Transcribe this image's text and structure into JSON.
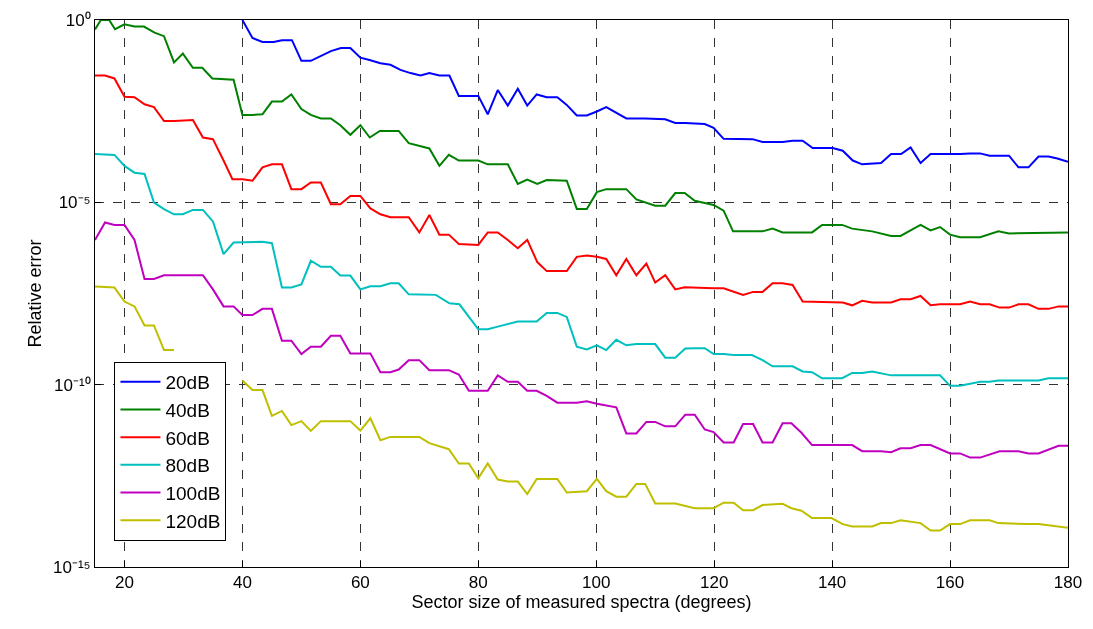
{
  "chart_data": {
    "type": "line",
    "xlabel": "Sector size of measured spectra (degrees)",
    "ylabel": "Relative error",
    "log": "y",
    "xlim": [
      15,
      180
    ],
    "xticks": [
      20,
      40,
      60,
      80,
      100,
      120,
      140,
      160,
      180
    ],
    "ylim": [
      1e-15,
      1
    ],
    "yticks": [
      {
        "value": 1e-15,
        "label": "10⁻¹⁵"
      },
      {
        "value": 1e-10,
        "label": "10⁻¹⁰"
      },
      {
        "value": 1e-05,
        "label": "10⁻⁵"
      },
      {
        "value": 1,
        "label": "10⁰"
      }
    ],
    "grid": true,
    "legend": "bottom left",
    "marker": "none",
    "line_style": "solid",
    "series": [
      {
        "name": "20dB",
        "color": "#0000ff",
        "x": [
          40.0,
          41.7,
          43.4,
          45.3,
          46.7,
          48.4,
          50.0,
          51.6,
          55.0,
          56.7,
          58.3,
          60.0,
          61.7,
          63.4,
          65.1,
          66.8,
          68.5,
          70.2,
          71.7,
          73.4,
          75.1,
          76.7,
          80.0,
          81.6,
          83.3,
          85.0,
          86.7,
          88.3,
          89.9,
          91.6,
          93.4,
          95.0,
          96.7,
          98.4,
          100.1,
          101.7,
          105.1,
          108.3,
          111.7,
          113.4,
          115.1,
          118.4,
          119.9,
          121.6,
          126.5,
          128.2,
          131.6,
          133.3,
          135.0,
          136.7,
          140.1,
          141.8,
          143.5,
          145.1,
          148.3,
          150.0,
          151.7,
          153.3,
          155.0,
          156.7,
          161.7,
          163.4,
          165.1,
          166.7,
          170.0,
          171.6,
          173.3,
          175.0,
          176.7,
          178.2,
          180.0
        ],
        "values": [
          1,
          0.32,
          0.25,
          0.25,
          0.28,
          0.28,
          0.076,
          0.076,
          0.14,
          0.17,
          0.17,
          0.093,
          0.079,
          0.065,
          0.059,
          0.043,
          0.035,
          0.03,
          0.035,
          0.03,
          0.03,
          0.0083,
          0.0083,
          0.0026,
          0.012,
          0.0045,
          0.013,
          0.0045,
          0.0091,
          0.0076,
          0.0076,
          0.0047,
          0.0024,
          0.0024,
          0.0031,
          0.0041,
          0.002,
          0.002,
          0.0019,
          0.0015,
          0.0015,
          0.0014,
          0.0011,
          0.00055,
          0.00054,
          0.00045,
          0.00045,
          0.00049,
          0.00049,
          0.00031,
          0.00031,
          0.00026,
          0.00014,
          0.00011,
          0.00012,
          0.00021,
          0.00021,
          0.00032,
          0.00012,
          0.00021,
          0.00021,
          0.00022,
          0.00022,
          0.00019,
          0.00019,
          9.1e-05,
          9.1e-05,
          0.00018,
          0.00018,
          0.00016,
          0.00013
        ]
      },
      {
        "name": "40dB",
        "color": "#008000",
        "x": [
          15.0,
          16.0,
          17.4,
          18.4,
          20.0,
          21.7,
          23.3,
          25.1,
          26.7,
          28.4,
          29.9,
          31.6,
          33.2,
          34.9,
          38.5,
          40.0,
          41.7,
          43.4,
          45.0,
          46.7,
          48.3,
          50.0,
          51.6,
          53.3,
          55.0,
          56.6,
          58.3,
          60.0,
          61.6,
          63.3,
          66.5,
          68.2,
          71.7,
          73.4,
          75.0,
          76.7,
          80.0,
          81.6,
          85.0,
          86.7,
          88.3,
          90.0,
          91.6,
          95.0,
          96.7,
          98.4,
          100.1,
          101.7,
          105.1,
          106.8,
          110.0,
          111.7,
          113.4,
          115.0,
          116.7,
          118.2,
          119.9,
          121.6,
          123.2,
          128.2,
          129.9,
          131.6,
          136.6,
          138.3,
          141.7,
          143.4,
          146.8,
          150.0,
          151.6,
          153.3,
          155.0,
          156.7,
          158.3,
          160.0,
          161.7,
          165.1,
          168.2,
          170.0,
          180.0
        ],
        "values": [
          0.55,
          1.0,
          1.0,
          0.56,
          0.76,
          0.66,
          0.66,
          0.45,
          0.36,
          0.069,
          0.12,
          0.049,
          0.049,
          0.025,
          0.023,
          0.0025,
          0.0025,
          0.0026,
          0.0058,
          0.0058,
          0.0091,
          0.0036,
          0.0025,
          0.002,
          0.002,
          0.0013,
          0.00071,
          0.0013,
          0.0006,
          0.00091,
          0.00091,
          0.00042,
          0.0003,
          0.0001,
          0.0002,
          0.00014,
          0.00014,
          0.00011,
          0.00011,
          3.2e-05,
          4.2e-05,
          3.2e-05,
          4.1e-05,
          3.9e-05,
          6.6e-06,
          6.6e-06,
          1.9e-05,
          2.3e-05,
          2.3e-05,
          1.2e-05,
          8.1e-06,
          8.1e-06,
          1.8e-05,
          1.8e-05,
          1.1e-05,
          9.8e-06,
          8.5e-06,
          5.9e-06,
          1.6e-06,
          1.6e-06,
          1.9e-06,
          1.5e-06,
          1.5e-06,
          2.4e-06,
          2.4e-06,
          1.9e-06,
          1.6e-06,
          1.2e-06,
          1.2e-06,
          1.7e-06,
          2.4e-06,
          1.7e-06,
          2.1e-06,
          1.3e-06,
          1.1e-06,
          1.1e-06,
          1.6e-06,
          1.4e-06,
          1.5e-06
        ]
      },
      {
        "name": "60dB",
        "color": "#ff0000",
        "x": [
          15.0,
          16.7,
          18.3,
          20.0,
          21.7,
          23.4,
          25.0,
          26.7,
          28.4,
          31.6,
          33.3,
          35.0,
          36.8,
          38.3,
          40.0,
          41.7,
          43.4,
          45.0,
          46.7,
          48.3,
          50.0,
          51.6,
          53.3,
          55.0,
          56.6,
          58.3,
          60.0,
          61.7,
          63.4,
          65.1,
          68.2,
          70.0,
          71.7,
          73.4,
          75.0,
          76.7,
          80.0,
          81.6,
          83.3,
          85.0,
          86.7,
          88.3,
          90.0,
          91.6,
          95.0,
          96.7,
          98.4,
          100.1,
          101.7,
          103.4,
          105.1,
          106.8,
          108.5,
          110.0,
          111.7,
          113.4,
          115.0,
          119.9,
          121.6,
          124.9,
          126.6,
          128.2,
          129.9,
          131.6,
          133.3,
          135.0,
          141.8,
          143.4,
          145.1,
          146.8,
          150.0,
          151.6,
          153.3,
          155.0,
          156.7,
          158.3,
          161.7,
          163.4,
          165.1,
          166.7,
          168.4,
          170.0,
          171.6,
          173.3,
          175.0,
          176.7,
          178.4,
          180.0
        ],
        "values": [
          0.03,
          0.03,
          0.025,
          0.0079,
          0.0076,
          0.0049,
          0.0041,
          0.0017,
          0.0017,
          0.0018,
          0.0006,
          0.00054,
          0.00014,
          4.3e-05,
          4.3e-05,
          3.9e-05,
          9.1e-05,
          0.00011,
          0.00011,
          2.3e-05,
          2.3e-05,
          3.5e-05,
          3.5e-05,
          8.9e-06,
          8.9e-06,
          1.5e-05,
          1.5e-05,
          6.8e-06,
          4.7e-06,
          3.9e-06,
          3.9e-06,
          1.5e-06,
          4.5e-06,
          1.3e-06,
          1.3e-06,
          7.2e-07,
          6.8e-07,
          1.5e-06,
          1.5e-06,
          9.3e-07,
          5.5e-07,
          9.3e-07,
          2.3e-07,
          1.3e-07,
          1.3e-07,
          3.2e-07,
          3.5e-07,
          3.2e-07,
          2.8e-07,
          1e-07,
          2.8e-07,
          1e-07,
          2.1e-07,
          6.3e-08,
          1e-07,
          4.1e-08,
          4.7e-08,
          4.4e-08,
          4.4e-08,
          2.9e-08,
          3.5e-08,
          3.5e-08,
          6e-08,
          6e-08,
          5.4e-08,
          1.9e-08,
          1.8e-08,
          1.5e-08,
          2e-08,
          1.8e-08,
          1.8e-08,
          2.2e-08,
          2.2e-08,
          2.7e-08,
          1.5e-08,
          1.6e-08,
          1.6e-08,
          1.9e-08,
          1.6e-08,
          1.6e-08,
          1.3e-08,
          1.3e-08,
          1.6e-08,
          1.6e-08,
          1.2e-08,
          1.2e-08,
          1.4e-08,
          1.4e-08
        ]
      },
      {
        "name": "80dB",
        "color": "#00bfbf",
        "x": [
          15.0,
          18.3,
          20.0,
          21.7,
          23.4,
          25.0,
          26.7,
          28.4,
          29.9,
          31.6,
          33.3,
          35.0,
          36.8,
          38.5,
          43.4,
          45.0,
          46.7,
          48.3,
          50.0,
          51.6,
          53.3,
          55.0,
          56.6,
          58.3,
          60.0,
          61.7,
          63.4,
          65.1,
          66.5,
          68.2,
          72.8,
          75.1,
          76.8,
          80.0,
          81.6,
          83.3,
          86.7,
          89.9,
          91.6,
          93.4,
          95.0,
          96.7,
          98.4,
          100.1,
          101.7,
          103.4,
          105.1,
          106.8,
          110.0,
          111.7,
          113.4,
          115.1,
          116.7,
          118.4,
          119.9,
          121.6,
          123.3,
          126.4,
          128.2,
          129.9,
          133.3,
          135.0,
          136.6,
          138.3,
          141.7,
          143.4,
          145.1,
          146.8,
          150.0,
          158.3,
          160.0,
          161.7,
          165.1,
          166.7,
          168.2,
          175.0,
          176.7,
          180.0
        ],
        "values": [
          0.00021,
          0.0002,
          0.0001,
          6.5e-05,
          6e-05,
          9.8e-06,
          6.5e-06,
          4.7e-06,
          4.7e-06,
          6.2e-06,
          6.2e-06,
          3e-06,
          3.8e-07,
          7.9e-07,
          8.3e-07,
          7.6e-07,
          4.6e-08,
          4.6e-08,
          5.6e-08,
          2.5e-07,
          1.7e-07,
          1.7e-07,
          9.8e-08,
          9.8e-08,
          4.1e-08,
          5e-08,
          5e-08,
          6e-08,
          6e-08,
          3e-08,
          2.9e-08,
          1.7e-08,
          1.6e-08,
          3.3e-09,
          3.3e-09,
          3.9e-09,
          5.4e-09,
          5.4e-09,
          9.3e-09,
          9.3e-09,
          7.2e-09,
          1.1e-09,
          9.3e-10,
          1.2e-09,
          8.9e-10,
          1.7e-09,
          1.2e-09,
          1.3e-09,
          1.3e-09,
          5.5e-10,
          5.5e-10,
          9.8e-10,
          1e-09,
          1e-09,
          6.9e-10,
          6.9e-10,
          6.5e-10,
          6.5e-10,
          4.7e-10,
          3.2e-10,
          3.2e-10,
          2.3e-10,
          2.2e-10,
          1.5e-10,
          1.5e-10,
          2.1e-10,
          2.1e-10,
          2.3e-10,
          1.8e-10,
          1.8e-10,
          9.3e-11,
          9.3e-11,
          1.2e-10,
          1.2e-10,
          1.3e-10,
          1.3e-10,
          1.5e-10,
          1.5e-10
        ]
      },
      {
        "name": "100dB",
        "color": "#bf00bf",
        "x": [
          15.0,
          16.7,
          18.3,
          20.0,
          21.7,
          23.4,
          25.0,
          26.7,
          33.3,
          35.0,
          36.8,
          38.5,
          40.0,
          41.7,
          43.4,
          45.0,
          46.7,
          48.3,
          50.0,
          51.6,
          53.3,
          55.0,
          56.6,
          58.3,
          61.7,
          63.4,
          65.1,
          66.5,
          68.2,
          70.0,
          71.7,
          75.0,
          76.7,
          78.4,
          81.6,
          83.3,
          85.0,
          86.7,
          88.3,
          89.9,
          91.6,
          93.4,
          96.7,
          98.4,
          100.1,
          103.4,
          105.1,
          106.8,
          108.5,
          110.0,
          111.7,
          113.4,
          115.1,
          116.7,
          118.4,
          119.9,
          121.6,
          123.3,
          124.9,
          126.6,
          128.2,
          129.9,
          131.6,
          133.1,
          134.8,
          136.6,
          143.4,
          145.1,
          148.3,
          150.0,
          151.6,
          153.3,
          155.0,
          156.7,
          160.0,
          161.7,
          163.4,
          165.1,
          168.4,
          171.6,
          173.3,
          175.0,
          178.4,
          180.0
        ],
        "values": [
          9.3e-07,
          2.8e-06,
          2.4e-06,
          2.4e-06,
          9.3e-07,
          7.9e-08,
          7.9e-08,
          1e-07,
          1e-07,
          4.1e-08,
          1.4e-08,
          1.4e-08,
          8.1e-09,
          8.1e-09,
          1.2e-08,
          1.2e-08,
          1.6e-09,
          1.6e-09,
          6.9e-10,
          1.1e-09,
          1.1e-09,
          2.2e-09,
          2.2e-09,
          7.2e-10,
          7.2e-10,
          2.2e-10,
          2.2e-10,
          2.6e-10,
          4.7e-10,
          4.7e-10,
          2.5e-10,
          2.5e-10,
          1.9e-10,
          6.8e-11,
          6.8e-11,
          1.8e-10,
          1.2e-10,
          1.2e-10,
          6.8e-11,
          6.8e-11,
          4.9e-11,
          3.2e-11,
          3.2e-11,
          3.5e-11,
          3e-11,
          2.4e-11,
          4.6e-12,
          4.6e-12,
          9.5e-12,
          9.5e-12,
          7.2e-12,
          7.2e-12,
          1.5e-11,
          1.5e-11,
          5.9e-12,
          5e-12,
          2.6e-12,
          2.6e-12,
          8.3e-12,
          8.3e-12,
          2.6e-12,
          2.6e-12,
          8.7e-12,
          8.7e-12,
          4.8e-12,
          2.2e-12,
          2.2e-12,
          1.5e-12,
          1.5e-12,
          1.4e-12,
          1.8e-12,
          1.8e-12,
          2.2e-12,
          2.2e-12,
          1.3e-12,
          1.3e-12,
          1e-12,
          1e-12,
          1.5e-12,
          1.5e-12,
          1.3e-12,
          1.3e-12,
          2.1e-12,
          2.1e-12
        ]
      },
      {
        "name": "120dB",
        "color": "#bfbf00",
        "x": [
          15.0,
          18.3,
          20.0,
          21.7,
          23.4,
          25.0,
          26.7,
          28.4,
          30.0,
          33.3,
          36.8,
          40.0,
          41.7,
          43.4,
          45.0,
          46.7,
          48.3,
          50.0,
          51.6,
          53.3,
          58.3,
          60.0,
          61.7,
          63.4,
          65.1,
          70.0,
          71.7,
          75.0,
          76.7,
          78.4,
          80.0,
          81.6,
          83.3,
          85.0,
          86.7,
          88.3,
          89.9,
          93.4,
          95.0,
          98.4,
          100.1,
          101.7,
          103.4,
          105.1,
          106.8,
          108.3,
          110.0,
          113.4,
          116.7,
          119.9,
          121.6,
          123.3,
          124.9,
          126.6,
          128.2,
          131.6,
          133.1,
          134.8,
          136.6,
          139.9,
          141.8,
          143.4,
          146.8,
          148.3,
          150.0,
          151.6,
          155.0,
          156.7,
          158.3,
          160.0,
          161.7,
          163.4,
          166.7,
          168.2,
          173.3,
          175.0,
          180.0
        ],
        "values": [
          4.9e-08,
          4.6e-08,
          1.9e-08,
          1.4e-08,
          4.2e-09,
          4.2e-09,
          8.9e-10,
          8.9e-10,
          null,
          null,
          null,
          1.3e-10,
          7.1e-11,
          7.1e-11,
          1.4e-11,
          1.9e-11,
          7.8e-12,
          1e-11,
          5.4e-12,
          1e-11,
          1e-11,
          5.5e-12,
          1.2e-11,
          3e-12,
          3.7e-12,
          3.7e-12,
          2.5e-12,
          1.7e-12,
          6.9e-13,
          6.9e-13,
          2.7e-13,
          6.9e-13,
          2.5e-13,
          2.2e-13,
          2.2e-13,
          1e-13,
          2.6e-13,
          2.6e-13,
          1.1e-13,
          1.2e-13,
          2.6e-13,
          1.2e-13,
          8.5e-14,
          8.5e-14,
          1.9e-13,
          1.9e-13,
          5.5e-14,
          5.5e-14,
          4.1e-14,
          4.1e-14,
          5.8e-14,
          5.8e-14,
          3.6e-14,
          3.6e-14,
          5e-14,
          5.4e-14,
          4.1e-14,
          3.5e-14,
          2.2e-14,
          2.2e-14,
          1.5e-14,
          1.3e-14,
          1.3e-14,
          1.6e-14,
          1.6e-14,
          1.9e-14,
          1.6e-14,
          1e-14,
          1e-14,
          1.5e-14,
          1.5e-14,
          1.9e-14,
          1.9e-14,
          1.6e-14,
          1.5e-14,
          1.5e-14,
          1.2e-14
        ]
      }
    ]
  }
}
